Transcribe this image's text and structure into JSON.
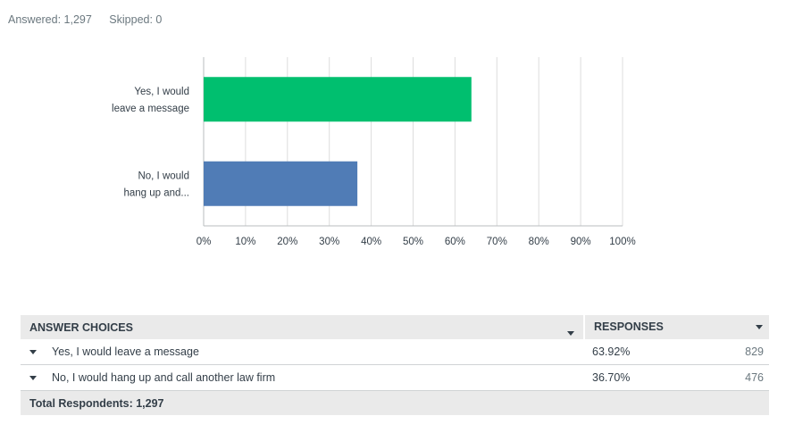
{
  "summary": {
    "answered": "Answered: 1,297",
    "skipped": "Skipped: 0"
  },
  "chart_data": {
    "type": "bar",
    "orientation": "horizontal",
    "categories": [
      "Yes, I would leave a message",
      "No, I would hang up and..."
    ],
    "category_lines": [
      [
        "Yes, I would",
        "leave a message"
      ],
      [
        "No, I would",
        "hang up and..."
      ]
    ],
    "values": [
      63.92,
      36.7
    ],
    "colors": [
      "#00bf6f",
      "#507cb6"
    ],
    "xlim": [
      0,
      100
    ],
    "x_ticks": [
      "0%",
      "10%",
      "20%",
      "30%",
      "40%",
      "50%",
      "60%",
      "70%",
      "80%",
      "90%",
      "100%"
    ],
    "grid": true,
    "title": "",
    "xlabel": "",
    "ylabel": ""
  },
  "table": {
    "headers": {
      "choices": "ANSWER CHOICES",
      "responses": "RESPONSES"
    },
    "rows": [
      {
        "choice": "Yes, I would leave a message",
        "percent": "63.92%",
        "count": "829"
      },
      {
        "choice": "No, I would hang up and call another law firm",
        "percent": "36.70%",
        "count": "476"
      }
    ],
    "total": "Total Respondents: 1,297"
  },
  "colors": {
    "grid": "#dddddd",
    "axis": "#b8bcbf",
    "header_bg": "#eaeaea"
  }
}
